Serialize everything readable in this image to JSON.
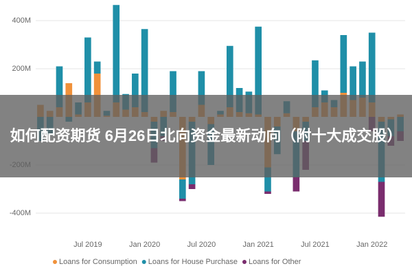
{
  "chart_data": {
    "type": "stacked_bar",
    "overlay_title": "如何配资期货 6月26日北向资金最新动向（附十大成交股）",
    "categories": [
      null,
      null,
      null,
      null,
      null,
      "Jul 2019",
      null,
      null,
      null,
      null,
      null,
      "Jan 2020",
      null,
      null,
      null,
      null,
      null,
      "Jul 2020",
      null,
      null,
      null,
      null,
      null,
      "Jan 2021",
      null,
      null,
      null,
      null,
      null,
      "Jul 2021",
      null,
      null,
      null,
      null,
      null,
      "Jan 2022",
      null,
      null,
      null
    ],
    "series": [
      {
        "name": "Loans for Consumption",
        "color": "#f0913a",
        "values": [
          50,
          25,
          40,
          140,
          10,
          60,
          180,
          5,
          60,
          30,
          40,
          20,
          -20,
          25,
          20,
          -260,
          -20,
          50,
          -30,
          10,
          40,
          20,
          15,
          10,
          -210,
          -40,
          15,
          -60,
          -20,
          40,
          60,
          40,
          100,
          70,
          80,
          60,
          -20,
          -10,
          10
        ]
      },
      {
        "name": "Loans for House Purchase",
        "color": "#1f8fa8",
        "values": [
          -100,
          -75,
          170,
          -20,
          50,
          270,
          50,
          20,
          405,
          65,
          140,
          345,
          -110,
          -80,
          170,
          -80,
          -260,
          140,
          -170,
          15,
          255,
          100,
          90,
          365,
          -100,
          -115,
          50,
          -190,
          -80,
          195,
          50,
          30,
          240,
          140,
          150,
          290,
          -250,
          -70,
          -60
        ]
      },
      {
        "name": "Loans for Other",
        "color": "#7a2d6e",
        "values": [
          0,
          0,
          0,
          0,
          0,
          0,
          0,
          0,
          0,
          0,
          0,
          0,
          -60,
          -20,
          0,
          -10,
          -20,
          0,
          0,
          0,
          0,
          0,
          0,
          0,
          -10,
          0,
          0,
          -60,
          -120,
          0,
          0,
          0,
          0,
          0,
          0,
          -60,
          -145,
          -40,
          -40
        ]
      }
    ],
    "ylim": [
      -470,
      470
    ],
    "yticks": [
      {
        "value": -400,
        "label": "-400M"
      },
      {
        "value": -200,
        "label": "-200M"
      },
      {
        "value": 200,
        "label": "200M"
      },
      {
        "value": 400,
        "label": "400M"
      }
    ],
    "grid": true
  }
}
